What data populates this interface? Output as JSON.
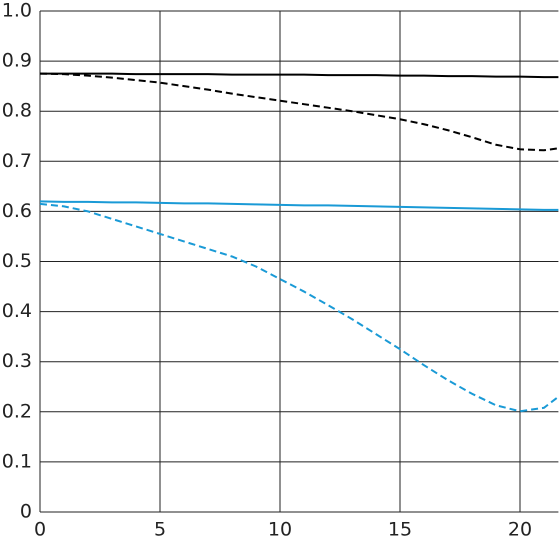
{
  "chart_data": {
    "type": "line",
    "x": [
      0,
      1,
      2,
      3,
      4,
      5,
      6,
      7,
      8,
      9,
      10,
      11,
      12,
      13,
      14,
      15,
      16,
      17,
      18,
      19,
      20,
      21,
      21.6
    ],
    "series": [
      {
        "color": "#000000",
        "dashed": false,
        "values": [
          0.875,
          0.875,
          0.875,
          0.875,
          0.874,
          0.874,
          0.874,
          0.874,
          0.873,
          0.873,
          0.873,
          0.873,
          0.872,
          0.872,
          0.872,
          0.871,
          0.871,
          0.87,
          0.87,
          0.869,
          0.869,
          0.868,
          0.868
        ]
      },
      {
        "color": "#000000",
        "dashed": true,
        "values": [
          0.875,
          0.874,
          0.871,
          0.867,
          0.862,
          0.857,
          0.85,
          0.843,
          0.835,
          0.828,
          0.821,
          0.814,
          0.807,
          0.8,
          0.792,
          0.784,
          0.774,
          0.762,
          0.748,
          0.733,
          0.724,
          0.722,
          0.726
        ]
      },
      {
        "color": "#1a9ad6",
        "dashed": false,
        "values": [
          0.62,
          0.619,
          0.619,
          0.618,
          0.618,
          0.617,
          0.616,
          0.616,
          0.615,
          0.614,
          0.613,
          0.612,
          0.612,
          0.611,
          0.61,
          0.609,
          0.608,
          0.607,
          0.606,
          0.605,
          0.604,
          0.603,
          0.603
        ]
      },
      {
        "color": "#1a9ad6",
        "dashed": true,
        "values": [
          0.615,
          0.61,
          0.6,
          0.585,
          0.57,
          0.555,
          0.54,
          0.525,
          0.51,
          0.49,
          0.465,
          0.44,
          0.413,
          0.385,
          0.355,
          0.325,
          0.293,
          0.263,
          0.236,
          0.213,
          0.201,
          0.208,
          0.23
        ]
      }
    ],
    "xlim": [
      0,
      21.6
    ],
    "ylim": [
      0,
      1
    ],
    "xticks": [
      0,
      5,
      10,
      15,
      20
    ],
    "yticks": [
      0,
      0.1,
      0.2,
      0.3,
      0.4,
      0.5,
      0.6,
      0.7,
      0.8,
      0.9,
      {
        "value": 1,
        "label": "1.0"
      }
    ],
    "grid": true
  }
}
